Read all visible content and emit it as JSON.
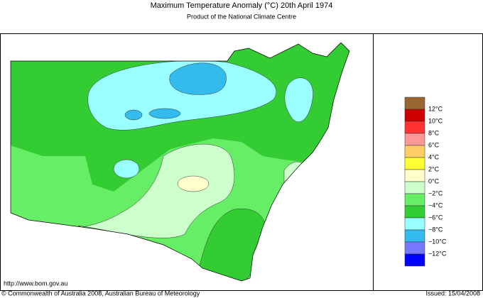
{
  "header": {
    "title": "Maximum Temperature Anomaly (°C)  20th April 1974",
    "subtitle": "Product of the National Climate Centre"
  },
  "legend": {
    "colors": [
      "#996633",
      "#cc0000",
      "#ff3333",
      "#ff9999",
      "#ffcc66",
      "#ffff33",
      "#ffffcc",
      "#ccffcc",
      "#66ee66",
      "#33cc33",
      "#99ffff",
      "#33bbee",
      "#7777ff",
      "#0000ff"
    ],
    "labels": [
      "12°C",
      "10°C",
      "8°C",
      "6°C",
      "4°C",
      "2°C",
      "0°C",
      "−2°C",
      "−4°C",
      "−6°C",
      "−8°C",
      "−10°C",
      "−12°C"
    ]
  },
  "footer": {
    "url": "http://www.bom.gov.au",
    "copyright": "© Commonwealth of Australia 2008, Australian Bureau of Meteorology",
    "issued": "Issued: 15/04/2008"
  }
}
